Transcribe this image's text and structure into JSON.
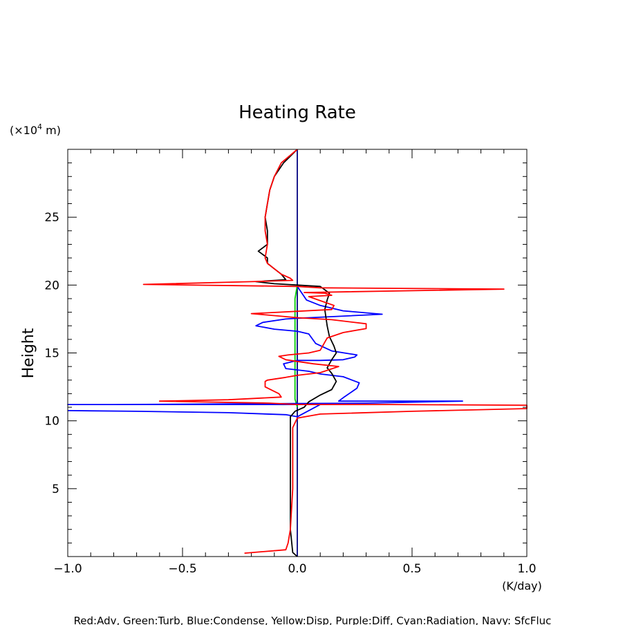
{
  "chart_data": {
    "type": "line",
    "title": "Heating Rate",
    "ylabel": "Height",
    "yunit_prefix": "(×10",
    "yunit_exp": "4",
    "yunit_suffix": " m)",
    "xunit": "(K/day)",
    "legend_text": "Red:Adv, Green:Turb, Blue:Condense, Yellow:Disp, Purple:Diff, Cyan:Radiation, Navy: SfcFluc",
    "xlim": [
      -1.0,
      1.0
    ],
    "ylim": [
      0,
      30
    ],
    "x_ticks": [
      {
        "v": -1.0,
        "label": "−1.0"
      },
      {
        "v": -0.5,
        "label": "−0.5"
      },
      {
        "v": 0.0,
        "label": "0.0"
      },
      {
        "v": 0.5,
        "label": "0.5"
      },
      {
        "v": 1.0,
        "label": "1.0"
      }
    ],
    "y_ticks": [
      {
        "v": 5,
        "label": "5"
      },
      {
        "v": 10,
        "label": "10"
      },
      {
        "v": 15,
        "label": "15"
      },
      {
        "v": 20,
        "label": "20"
      },
      {
        "v": 25,
        "label": "25"
      }
    ],
    "series": [
      {
        "color": "#000080",
        "points": [
          [
            0.0,
            0.0
          ],
          [
            0.0,
            30.0
          ]
        ]
      },
      {
        "color": "#00cc00",
        "points": [
          [
            0.0,
            11.0
          ],
          [
            -0.01,
            11.6
          ],
          [
            -0.01,
            14.0
          ],
          [
            -0.01,
            16.5
          ],
          [
            -0.01,
            18.0
          ],
          [
            -0.01,
            19.0
          ],
          [
            0.0,
            20.0
          ]
        ]
      },
      {
        "color": "#0000ff",
        "points": [
          [
            -1.0,
            10.75
          ],
          [
            -0.7,
            10.7
          ],
          [
            -0.3,
            10.6
          ],
          [
            -0.05,
            10.45
          ],
          [
            0.0,
            10.3
          ],
          [
            0.1,
            11.2
          ],
          [
            -1.0,
            11.2
          ],
          [
            -0.8,
            11.2
          ],
          [
            0.3,
            11.3
          ],
          [
            0.72,
            11.45
          ],
          [
            0.18,
            11.45
          ],
          [
            0.2,
            11.7
          ],
          [
            0.26,
            12.4
          ],
          [
            0.27,
            12.8
          ],
          [
            0.2,
            13.25
          ],
          [
            0.1,
            13.45
          ],
          [
            0.05,
            13.65
          ],
          [
            -0.05,
            13.85
          ],
          [
            -0.06,
            14.2
          ],
          [
            0.0,
            14.45
          ],
          [
            0.1,
            14.45
          ],
          [
            0.2,
            14.5
          ],
          [
            0.25,
            14.7
          ],
          [
            0.26,
            14.85
          ],
          [
            0.15,
            15.15
          ],
          [
            0.08,
            15.7
          ],
          [
            0.05,
            16.4
          ],
          [
            0.0,
            16.6
          ],
          [
            -0.1,
            16.75
          ],
          [
            -0.18,
            17.0
          ],
          [
            -0.15,
            17.25
          ],
          [
            -0.05,
            17.5
          ],
          [
            0.0,
            17.55
          ],
          [
            0.37,
            17.85
          ],
          [
            0.2,
            18.1
          ],
          [
            0.1,
            18.5
          ],
          [
            0.04,
            18.9
          ],
          [
            0.0,
            19.9
          ]
        ]
      },
      {
        "color": "#000000",
        "points": [
          [
            0.0,
            0.0
          ],
          [
            -0.02,
            0.3
          ],
          [
            -0.03,
            2.0
          ],
          [
            -0.03,
            5.0
          ],
          [
            -0.03,
            8.0
          ],
          [
            -0.03,
            9.5
          ],
          [
            -0.03,
            10.3
          ],
          [
            -0.01,
            10.7
          ],
          [
            0.03,
            11.0
          ],
          [
            0.05,
            11.4
          ],
          [
            0.1,
            11.9
          ],
          [
            0.15,
            12.3
          ],
          [
            0.17,
            12.9
          ],
          [
            0.15,
            13.5
          ],
          [
            0.13,
            13.9
          ],
          [
            0.15,
            14.5
          ],
          [
            0.17,
            15.0
          ],
          [
            0.16,
            15.5
          ],
          [
            0.14,
            16.2
          ],
          [
            0.13,
            17.0
          ],
          [
            0.12,
            18.2
          ],
          [
            0.13,
            18.9
          ],
          [
            0.14,
            19.4
          ],
          [
            0.1,
            19.9
          ],
          [
            0.0,
            20.0
          ],
          [
            -0.1,
            20.1
          ],
          [
            -0.18,
            20.25
          ],
          [
            -0.05,
            20.4
          ],
          [
            -0.07,
            20.8
          ],
          [
            -0.1,
            21.2
          ],
          [
            -0.13,
            21.6
          ],
          [
            -0.13,
            22.0
          ],
          [
            -0.17,
            22.5
          ],
          [
            -0.13,
            23.0
          ],
          [
            -0.13,
            24.0
          ],
          [
            -0.14,
            25.0
          ],
          [
            -0.13,
            26.0
          ],
          [
            -0.12,
            27.0
          ],
          [
            -0.1,
            28.0
          ],
          [
            -0.06,
            29.0
          ],
          [
            0.0,
            30.0
          ]
        ]
      },
      {
        "color": "#ff0000",
        "points": [
          [
            -0.23,
            0.25
          ],
          [
            -0.05,
            0.5
          ],
          [
            -0.04,
            1.0
          ],
          [
            -0.03,
            2.0
          ],
          [
            -0.02,
            5.0
          ],
          [
            -0.02,
            8.0
          ],
          [
            -0.02,
            9.5
          ],
          [
            0.0,
            10.2
          ],
          [
            0.1,
            10.5
          ],
          [
            0.5,
            10.7
          ],
          [
            1.0,
            10.9
          ],
          [
            1.0,
            11.15
          ],
          [
            0.4,
            11.2
          ],
          [
            0.0,
            11.2
          ],
          [
            -0.12,
            11.3
          ],
          [
            -0.6,
            11.45
          ],
          [
            -0.3,
            11.55
          ],
          [
            -0.07,
            11.75
          ],
          [
            -0.08,
            12.0
          ],
          [
            -0.14,
            12.5
          ],
          [
            -0.14,
            12.9
          ],
          [
            -0.13,
            13.0
          ],
          [
            -0.05,
            13.2
          ],
          [
            0.0,
            13.35
          ],
          [
            0.1,
            13.55
          ],
          [
            0.18,
            14.0
          ],
          [
            0.07,
            14.2
          ],
          [
            -0.05,
            14.5
          ],
          [
            -0.08,
            14.75
          ],
          [
            -0.04,
            14.85
          ],
          [
            0.05,
            15.0
          ],
          [
            0.1,
            15.2
          ],
          [
            0.13,
            16.1
          ],
          [
            0.2,
            16.5
          ],
          [
            0.3,
            16.8
          ],
          [
            0.3,
            17.15
          ],
          [
            0.15,
            17.45
          ],
          [
            0.0,
            17.6
          ],
          [
            -0.1,
            17.75
          ],
          [
            -0.2,
            17.9
          ],
          [
            0.15,
            18.2
          ],
          [
            0.16,
            18.5
          ],
          [
            0.1,
            18.85
          ],
          [
            0.05,
            19.15
          ],
          [
            0.15,
            19.25
          ],
          [
            0.12,
            19.4
          ],
          [
            0.03,
            19.45
          ],
          [
            0.9,
            19.7
          ],
          [
            0.1,
            19.8
          ],
          [
            0.0,
            19.9
          ],
          [
            -0.67,
            20.05
          ],
          [
            -0.2,
            20.25
          ],
          [
            -0.02,
            20.35
          ],
          [
            -0.03,
            20.5
          ],
          [
            -0.07,
            20.8
          ],
          [
            -0.1,
            21.2
          ],
          [
            -0.13,
            21.6
          ],
          [
            -0.14,
            22.0
          ],
          [
            -0.13,
            23.0
          ],
          [
            -0.14,
            24.0
          ],
          [
            -0.14,
            25.0
          ],
          [
            -0.13,
            26.0
          ],
          [
            -0.12,
            27.0
          ],
          [
            -0.1,
            28.0
          ],
          [
            -0.07,
            29.0
          ],
          [
            0.0,
            30.0
          ]
        ]
      }
    ]
  }
}
